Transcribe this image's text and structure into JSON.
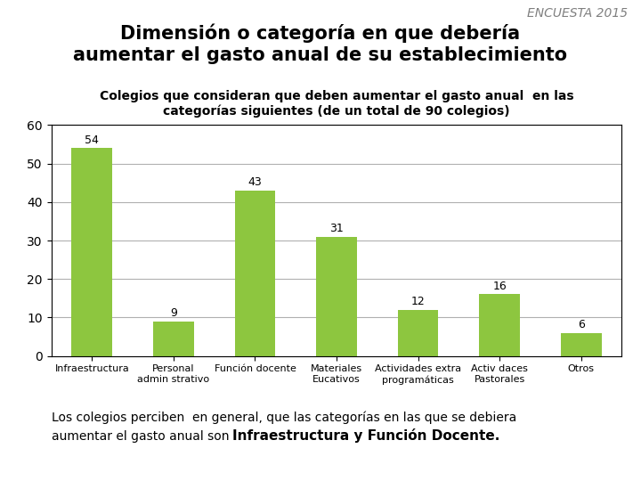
{
  "chart_data": {
    "type": "bar",
    "title": "Dimensión o categoría en que debería\naumentar el gasto anual de su establecimiento",
    "subtitle": "Colegios que consideran que deben aumentar el gasto anual  en las\ncategorías siguientes (de un total de 90 colegios)",
    "annotations": [
      "ENCUESTA 2015",
      "Los colegios perciben  en general, que las categorías en las que se debiera",
      "aumentar el gasto anual son ",
      "Infraestructura y Función Docente."
    ],
    "categories": [
      "Infraestructura",
      "Personal\nadmin strativo",
      "Función docente",
      "Materiales\nEucativos",
      "Actividades extra\nprogramáticas",
      "Activ daces\nPastorales",
      "Otros"
    ],
    "values": [
      54,
      9,
      43,
      31,
      12,
      16,
      6
    ],
    "color": "#8DC63F",
    "ylim": [
      0,
      60
    ],
    "yticks": [
      0,
      10,
      20,
      30,
      40,
      50,
      60
    ],
    "grid": true,
    "data_labels": true
  }
}
